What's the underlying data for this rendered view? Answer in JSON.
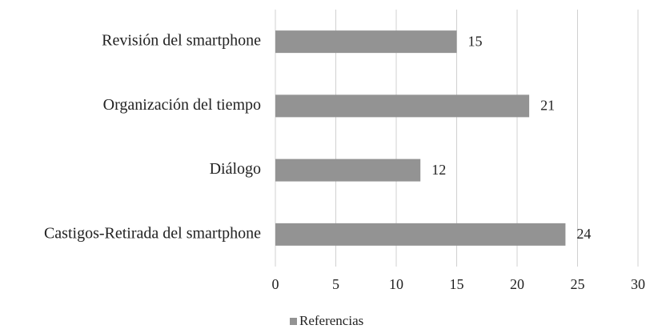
{
  "chart_data": {
    "type": "barh",
    "categories": [
      "Revisión del smartphone",
      "Organización del tiempo",
      "Diálogo",
      "Castigos-Retirada del smartphone"
    ],
    "series": [
      {
        "name": "Referencias",
        "color": "#939393",
        "values": [
          15,
          21,
          12,
          24
        ]
      }
    ],
    "xlim": [
      0,
      30
    ],
    "xticks": [
      0,
      5,
      10,
      15,
      20,
      25,
      30
    ],
    "grid": true,
    "legend": "bottom"
  }
}
